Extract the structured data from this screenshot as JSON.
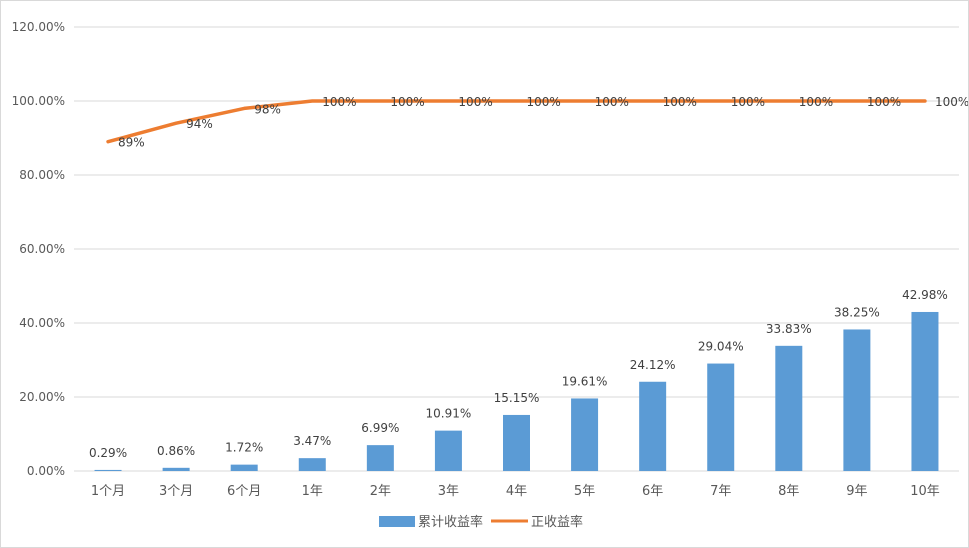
{
  "chart_data": {
    "type": "bar",
    "categories": [
      "1个月",
      "3个月",
      "6个月",
      "1年",
      "2年",
      "3年",
      "4年",
      "5年",
      "6年",
      "7年",
      "8年",
      "9年",
      "10年"
    ],
    "series": [
      {
        "name": "累计收益率",
        "type": "bar",
        "color": "#5b9bd5",
        "values": [
          0.29,
          0.86,
          1.72,
          3.47,
          6.99,
          10.91,
          15.15,
          19.61,
          24.12,
          29.04,
          33.83,
          38.25,
          42.98
        ],
        "labels": [
          "0.29%",
          "0.86%",
          "1.72%",
          "3.47%",
          "6.99%",
          "10.91%",
          "15.15%",
          "19.61%",
          "24.12%",
          "29.04%",
          "33.83%",
          "38.25%",
          "42.98%"
        ]
      },
      {
        "name": "正收益率",
        "type": "line",
        "color": "#ed7d31",
        "values": [
          89,
          94,
          98,
          100,
          100,
          100,
          100,
          100,
          100,
          100,
          100,
          100,
          100
        ],
        "labels": [
          "89%",
          "94%",
          "98%",
          "100%",
          "100%",
          "100%",
          "100%",
          "100%",
          "100%",
          "100%",
          "100%",
          "100%",
          "100%"
        ]
      }
    ],
    "ylim": [
      0,
      120
    ],
    "yticks": [
      0,
      20,
      40,
      60,
      80,
      100,
      120
    ],
    "ytick_labels": [
      "0.00%",
      "20.00%",
      "40.00%",
      "60.00%",
      "80.00%",
      "100.00%",
      "120.00%"
    ],
    "grid": true,
    "legend_position": "bottom",
    "title": "",
    "xlabel": "",
    "ylabel": ""
  }
}
